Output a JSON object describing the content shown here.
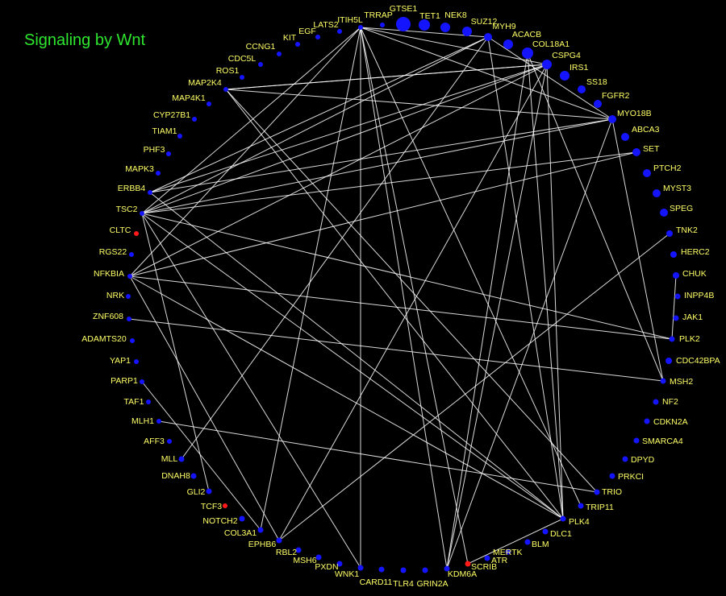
{
  "title": "Signaling by Wnt",
  "colors": {
    "background": "#000000",
    "title": "#2ee62e",
    "label": "#ffff66",
    "node": "#1414ff",
    "highlight_node": "#ff1a1a",
    "edge": "#ffffff"
  },
  "nodes": [
    {
      "id": "GTSE1",
      "highlight": false
    },
    {
      "id": "TET1",
      "highlight": false
    },
    {
      "id": "NEK8",
      "highlight": false
    },
    {
      "id": "SUZ12",
      "highlight": false
    },
    {
      "id": "MYH9",
      "highlight": false
    },
    {
      "id": "ACACB",
      "highlight": false
    },
    {
      "id": "COL18A1",
      "highlight": false
    },
    {
      "id": "CSPG4",
      "highlight": false
    },
    {
      "id": "IRS1",
      "highlight": false
    },
    {
      "id": "SS18",
      "highlight": false
    },
    {
      "id": "FGFR2",
      "highlight": false
    },
    {
      "id": "MYO18B",
      "highlight": false
    },
    {
      "id": "ABCA3",
      "highlight": false
    },
    {
      "id": "SET",
      "highlight": false
    },
    {
      "id": "PTCH2",
      "highlight": false
    },
    {
      "id": "MYST3",
      "highlight": false
    },
    {
      "id": "SPEG",
      "highlight": false
    },
    {
      "id": "TNK2",
      "highlight": false
    },
    {
      "id": "HERC2",
      "highlight": false
    },
    {
      "id": "CHUK",
      "highlight": false
    },
    {
      "id": "INPP4B",
      "highlight": false
    },
    {
      "id": "JAK1",
      "highlight": false
    },
    {
      "id": "PLK2",
      "highlight": false
    },
    {
      "id": "CDC42BPA",
      "highlight": false
    },
    {
      "id": "MSH2",
      "highlight": false
    },
    {
      "id": "NF2",
      "highlight": false
    },
    {
      "id": "CDKN2A",
      "highlight": false
    },
    {
      "id": "SMARCA4",
      "highlight": false
    },
    {
      "id": "DPYD",
      "highlight": false
    },
    {
      "id": "PRKCI",
      "highlight": false
    },
    {
      "id": "TRIO",
      "highlight": false
    },
    {
      "id": "TRIP11",
      "highlight": false
    },
    {
      "id": "PLK4",
      "highlight": false
    },
    {
      "id": "DLC1",
      "highlight": false
    },
    {
      "id": "BLM",
      "highlight": false
    },
    {
      "id": "MERTK",
      "highlight": false
    },
    {
      "id": "ATR",
      "highlight": false
    },
    {
      "id": "SCRIB",
      "highlight": true
    },
    {
      "id": "KDM6A",
      "highlight": false
    },
    {
      "id": "GRIN2A",
      "highlight": false
    },
    {
      "id": "TLR4",
      "highlight": false
    },
    {
      "id": "CARD11",
      "highlight": false
    },
    {
      "id": "WNK1",
      "highlight": false
    },
    {
      "id": "PXDN",
      "highlight": false
    },
    {
      "id": "MSH6",
      "highlight": false
    },
    {
      "id": "RBL2",
      "highlight": false
    },
    {
      "id": "EPHB6",
      "highlight": false
    },
    {
      "id": "COL3A1",
      "highlight": false
    },
    {
      "id": "NOTCH2",
      "highlight": false
    },
    {
      "id": "TCF3",
      "highlight": true
    },
    {
      "id": "GLI2",
      "highlight": false
    },
    {
      "id": "DNAH8",
      "highlight": false
    },
    {
      "id": "MLL",
      "highlight": false
    },
    {
      "id": "AFF3",
      "highlight": false
    },
    {
      "id": "MLH1",
      "highlight": false
    },
    {
      "id": "TAF1",
      "highlight": false
    },
    {
      "id": "PARP1",
      "highlight": false
    },
    {
      "id": "YAP1",
      "highlight": false
    },
    {
      "id": "ADAMTS20",
      "highlight": false
    },
    {
      "id": "ZNF608",
      "highlight": false
    },
    {
      "id": "NRK",
      "highlight": false
    },
    {
      "id": "NFKBIA",
      "highlight": false
    },
    {
      "id": "RGS22",
      "highlight": false
    },
    {
      "id": "CLTC",
      "highlight": true
    },
    {
      "id": "TSC2",
      "highlight": false
    },
    {
      "id": "ERBB4",
      "highlight": false
    },
    {
      "id": "MAPK3",
      "highlight": false
    },
    {
      "id": "PHF3",
      "highlight": false
    },
    {
      "id": "TIAM1",
      "highlight": false
    },
    {
      "id": "CYP27B1",
      "highlight": false
    },
    {
      "id": "MAP4K1",
      "highlight": false
    },
    {
      "id": "MAP2K4",
      "highlight": false
    },
    {
      "id": "ROS1",
      "highlight": false
    },
    {
      "id": "CDC5L",
      "highlight": false
    },
    {
      "id": "CCNG1",
      "highlight": false
    },
    {
      "id": "KIT",
      "highlight": false
    },
    {
      "id": "EGF",
      "highlight": false
    },
    {
      "id": "LATS2",
      "highlight": false
    },
    {
      "id": "ITIH5L",
      "highlight": false
    },
    {
      "id": "TRRAP",
      "highlight": false
    }
  ],
  "edges": [
    [
      "ITIH5L",
      "TSC2"
    ],
    [
      "ITIH5L",
      "NFKBIA"
    ],
    [
      "ITIH5L",
      "SCRIB"
    ],
    [
      "ITIH5L",
      "KDM6A"
    ],
    [
      "ITIH5L",
      "WNK1"
    ],
    [
      "ITIH5L",
      "COL3A1"
    ],
    [
      "ITIH5L",
      "MYH9"
    ],
    [
      "ITIH5L",
      "CSPG4"
    ],
    [
      "ITIH5L",
      "MYO18B"
    ],
    [
      "MYH9",
      "ERBB4"
    ],
    [
      "MYH9",
      "TSC2"
    ],
    [
      "MYH9",
      "MYO18B"
    ],
    [
      "MYH9",
      "PLK4"
    ],
    [
      "MYH9",
      "MLL"
    ],
    [
      "CSPG4",
      "ERBB4"
    ],
    [
      "CSPG4",
      "TSC2"
    ],
    [
      "CSPG4",
      "NFKBIA"
    ],
    [
      "CSPG4",
      "EPHB6"
    ],
    [
      "CSPG4",
      "PLK4"
    ],
    [
      "CSPG4",
      "KDM6A"
    ],
    [
      "CSPG4",
      "MAP2K4"
    ],
    [
      "MAP2K4",
      "CSPG4"
    ],
    [
      "MAP2K4",
      "MYO18B"
    ],
    [
      "MAP2K4",
      "PLK4"
    ],
    [
      "MYO18B",
      "ERBB4"
    ],
    [
      "MYO18B",
      "TSC2"
    ],
    [
      "MYO18B",
      "MSH2"
    ],
    [
      "MYO18B",
      "KDM6A"
    ],
    [
      "SET",
      "NFKBIA"
    ],
    [
      "SET",
      "TSC2"
    ],
    [
      "ERBB4",
      "PLK4"
    ],
    [
      "TSC2",
      "PLK2"
    ],
    [
      "TSC2",
      "PLK4"
    ],
    [
      "TSC2",
      "WNK1"
    ],
    [
      "TSC2",
      "GLI2"
    ],
    [
      "NFKBIA",
      "PLK4"
    ],
    [
      "NFKBIA",
      "EPHB6"
    ],
    [
      "ZNF608",
      "MSH2"
    ],
    [
      "MLH1",
      "TRIO"
    ],
    [
      "PARP1",
      "COL3A1"
    ],
    [
      "TNK2",
      "EPHB6"
    ],
    [
      "CHUK",
      "PLK2"
    ],
    [
      "PLK2",
      "NFKBIA"
    ],
    [
      "PLK4",
      "SCRIB"
    ],
    [
      "TRIO",
      "MAP2K4"
    ],
    [
      "TRIP11",
      "ITIH5L"
    ],
    [
      "KDM6A",
      "COL18A1"
    ],
    [
      "PLK4",
      "COL18A1"
    ],
    [
      "MSH2",
      "COL18A1"
    ]
  ]
}
